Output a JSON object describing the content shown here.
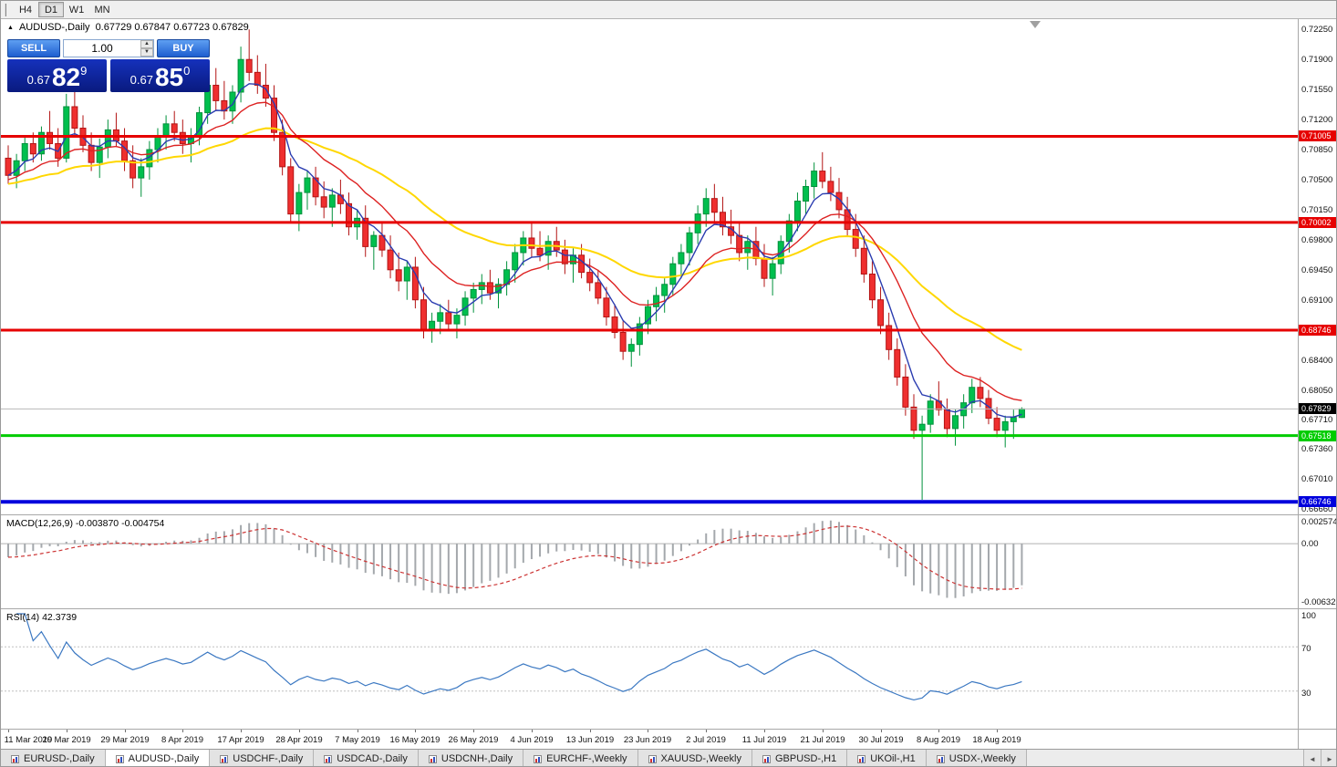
{
  "toolbar": {
    "timeframes": [
      "H4",
      "D1",
      "W1",
      "MN"
    ],
    "active": "D1"
  },
  "chart_header": {
    "marker": "▲",
    "symbol_label": "AUDUSD-,Daily",
    "ohlc": "0.67729 0.67847 0.67723 0.67829"
  },
  "trade_panel": {
    "sell_label": "SELL",
    "buy_label": "BUY",
    "volume": "1.00",
    "spin_up": "▲",
    "spin_down": "▼",
    "sell_price": {
      "small": "0.67",
      "big": "82",
      "sup": "9"
    },
    "buy_price": {
      "small": "0.67",
      "big": "85",
      "sup": "0"
    }
  },
  "macd_panel": {
    "label": "MACD(12,26,9) -0.003870 -0.004754"
  },
  "rsi_panel": {
    "label": "RSI(14) 42.3739"
  },
  "bid_tag": "0.67829",
  "colors": {
    "up": "#00bf4e",
    "up_dark": "#00913b",
    "down": "#ef2f2f",
    "down_dark": "#b31414",
    "ma_slow": "#ffd700",
    "ma_mid": "#dd2222",
    "ma_fast": "#2a3cb0",
    "macd_hist": "#a4a8ac",
    "macd_signal": "#cc3333",
    "rsi": "#3b78c2",
    "level_red": "#e60000",
    "level_green": "#00cc00",
    "level_blue": "#0000dd",
    "bid_line": "#b8b8b8",
    "trade_blue": "#0d22a8"
  },
  "bottom_tabs": {
    "tabs": [
      "EURUSD-,Daily",
      "AUDUSD-,Daily",
      "USDCHF-,Daily",
      "USDCAD-,Daily",
      "USDCNH-,Daily",
      "EURCHF-,Weekly",
      "XAUUSD-,Weekly",
      "GBPUSD-,H1",
      "UKOil-,H1",
      "USDX-,Weekly"
    ],
    "active_index": 1,
    "scroll_left": "◄",
    "scroll_right": "►"
  },
  "chart_data": {
    "type": "candlestick",
    "symbol": "AUDUSD-",
    "timeframe": "Daily",
    "title": "AUDUSD-,Daily",
    "price_range": [
      0.666,
      0.7237
    ],
    "bid": 0.67829,
    "ask": 0.6785,
    "y_ticks": [
      "0.72250",
      "0.71900",
      "0.71550",
      "0.71200",
      "0.70850",
      "0.70500",
      "0.70150",
      "0.69800",
      "0.69450",
      "0.69100",
      "0.68750",
      "0.68400",
      "0.68050",
      "0.67710",
      "0.67360",
      "0.67010",
      "0.66660"
    ],
    "macd_ticks": [
      "0.002574",
      "0.00",
      "-0.006326"
    ],
    "rsi_ticks": [
      "100",
      "70",
      "30"
    ],
    "date_labels": [
      "11 Mar 2019",
      "20 Mar 2019",
      "29 Mar 2019",
      "8 Apr 2019",
      "17 Apr 2019",
      "28 Apr 2019",
      "7 May 2019",
      "16 May 2019",
      "26 May 2019",
      "4 Jun 2019",
      "13 Jun 2019",
      "23 Jun 2019",
      "2 Jul 2019",
      "11 Jul 2019",
      "21 Jul 2019",
      "30 Jul 2019",
      "8 Aug 2019",
      "18 Aug 2019"
    ],
    "label_indices": [
      0,
      7,
      14,
      21,
      28,
      35,
      42,
      49,
      56,
      63,
      70,
      77,
      84,
      91,
      98,
      105,
      112,
      119
    ],
    "levels": [
      {
        "label": "0.71005",
        "price": 0.71005,
        "color": "#e60000",
        "width": 3
      },
      {
        "label": "0.70002",
        "price": 0.70002,
        "color": "#e60000",
        "width": 3
      },
      {
        "label": "0.68746",
        "price": 0.68746,
        "color": "#e60000",
        "width": 3
      },
      {
        "label": "0.67518",
        "price": 0.67518,
        "color": "#00cc00",
        "width": 3
      },
      {
        "label": "0.66746",
        "price": 0.66746,
        "color": "#0000dd",
        "width": 4
      }
    ],
    "ma_periods": [
      34,
      13,
      5
    ],
    "indicators": {
      "macd": {
        "params": "12,26,9",
        "value": -0.00387,
        "signal": -0.004754,
        "axis_max": 0.002574,
        "axis_min": -0.006326
      },
      "rsi": {
        "period": 14,
        "value": 42.3739,
        "levels": [
          70,
          30
        ]
      }
    },
    "ohlc": [
      [
        0.7075,
        0.709,
        0.7045,
        0.7055
      ],
      [
        0.7055,
        0.708,
        0.704,
        0.7072
      ],
      [
        0.7072,
        0.71,
        0.706,
        0.7092
      ],
      [
        0.7092,
        0.7105,
        0.707,
        0.708
      ],
      [
        0.708,
        0.7112,
        0.7072,
        0.7105
      ],
      [
        0.7105,
        0.713,
        0.7085,
        0.7092
      ],
      [
        0.7092,
        0.711,
        0.7065,
        0.7075
      ],
      [
        0.7075,
        0.715,
        0.707,
        0.7135
      ],
      [
        0.7135,
        0.7155,
        0.71,
        0.711
      ],
      [
        0.711,
        0.7125,
        0.7082,
        0.709
      ],
      [
        0.709,
        0.7105,
        0.706,
        0.707
      ],
      [
        0.707,
        0.7098,
        0.7052,
        0.7088
      ],
      [
        0.7088,
        0.712,
        0.7075,
        0.7108
      ],
      [
        0.7108,
        0.7128,
        0.7088,
        0.7095
      ],
      [
        0.7095,
        0.711,
        0.706,
        0.7072
      ],
      [
        0.7072,
        0.709,
        0.704,
        0.7052
      ],
      [
        0.7052,
        0.7075,
        0.703,
        0.7065
      ],
      [
        0.7065,
        0.7095,
        0.705,
        0.7085
      ],
      [
        0.7085,
        0.711,
        0.707,
        0.71
      ],
      [
        0.71,
        0.7125,
        0.7085,
        0.7115
      ],
      [
        0.7115,
        0.713,
        0.7095,
        0.7105
      ],
      [
        0.7105,
        0.712,
        0.708,
        0.7092
      ],
      [
        0.7092,
        0.711,
        0.707,
        0.71
      ],
      [
        0.71,
        0.7135,
        0.709,
        0.7128
      ],
      [
        0.7128,
        0.7175,
        0.7115,
        0.716
      ],
      [
        0.716,
        0.718,
        0.713,
        0.7142
      ],
      [
        0.7142,
        0.7165,
        0.712,
        0.713
      ],
      [
        0.713,
        0.716,
        0.7115,
        0.7152
      ],
      [
        0.7152,
        0.7205,
        0.714,
        0.719
      ],
      [
        0.719,
        0.7225,
        0.7165,
        0.7175
      ],
      [
        0.7175,
        0.7195,
        0.715,
        0.716
      ],
      [
        0.716,
        0.7185,
        0.7135,
        0.7145
      ],
      [
        0.7145,
        0.716,
        0.7095,
        0.7105
      ],
      [
        0.7105,
        0.712,
        0.7055,
        0.7065
      ],
      [
        0.7065,
        0.7075,
        0.7,
        0.701
      ],
      [
        0.701,
        0.7045,
        0.699,
        0.7035
      ],
      [
        0.7035,
        0.706,
        0.7015,
        0.7052
      ],
      [
        0.7052,
        0.7065,
        0.702,
        0.703
      ],
      [
        0.703,
        0.7048,
        0.7005,
        0.7018
      ],
      [
        0.7018,
        0.704,
        0.6995,
        0.7032
      ],
      [
        0.7032,
        0.705,
        0.701,
        0.7022
      ],
      [
        0.7022,
        0.7035,
        0.6985,
        0.6995
      ],
      [
        0.6995,
        0.7015,
        0.698,
        0.7005
      ],
      [
        0.7005,
        0.702,
        0.696,
        0.6972
      ],
      [
        0.6972,
        0.699,
        0.6945,
        0.6985
      ],
      [
        0.6985,
        0.7,
        0.696,
        0.6968
      ],
      [
        0.6968,
        0.6985,
        0.6935,
        0.6945
      ],
      [
        0.6945,
        0.6965,
        0.692,
        0.6932
      ],
      [
        0.6932,
        0.6955,
        0.691,
        0.6948
      ],
      [
        0.6948,
        0.696,
        0.69,
        0.691
      ],
      [
        0.691,
        0.6925,
        0.6865,
        0.6875
      ],
      [
        0.6875,
        0.6895,
        0.686,
        0.6885
      ],
      [
        0.6885,
        0.6905,
        0.687,
        0.6895
      ],
      [
        0.6895,
        0.691,
        0.6875,
        0.6882
      ],
      [
        0.6882,
        0.69,
        0.6865,
        0.6892
      ],
      [
        0.6892,
        0.692,
        0.688,
        0.6912
      ],
      [
        0.6912,
        0.693,
        0.6895,
        0.6922
      ],
      [
        0.6922,
        0.694,
        0.6905,
        0.693
      ],
      [
        0.693,
        0.6945,
        0.691,
        0.6918
      ],
      [
        0.6918,
        0.6935,
        0.69,
        0.6928
      ],
      [
        0.6928,
        0.6955,
        0.6915,
        0.6945
      ],
      [
        0.6945,
        0.6975,
        0.693,
        0.6965
      ],
      [
        0.6965,
        0.699,
        0.695,
        0.6982
      ],
      [
        0.6982,
        0.7,
        0.696,
        0.697
      ],
      [
        0.697,
        0.699,
        0.6955,
        0.6962
      ],
      [
        0.6962,
        0.6985,
        0.6945,
        0.6978
      ],
      [
        0.6978,
        0.6995,
        0.696,
        0.6968
      ],
      [
        0.6968,
        0.698,
        0.694,
        0.6952
      ],
      [
        0.6952,
        0.697,
        0.693,
        0.6962
      ],
      [
        0.6962,
        0.6975,
        0.6935,
        0.6942
      ],
      [
        0.6942,
        0.6958,
        0.692,
        0.693
      ],
      [
        0.693,
        0.6945,
        0.6905,
        0.6912
      ],
      [
        0.6912,
        0.6925,
        0.688,
        0.689
      ],
      [
        0.689,
        0.6905,
        0.6865,
        0.6872
      ],
      [
        0.6872,
        0.6885,
        0.684,
        0.685
      ],
      [
        0.685,
        0.6865,
        0.6832,
        0.6858
      ],
      [
        0.6858,
        0.689,
        0.6845,
        0.6882
      ],
      [
        0.6882,
        0.691,
        0.687,
        0.6902
      ],
      [
        0.6902,
        0.6925,
        0.6885,
        0.6915
      ],
      [
        0.6915,
        0.6935,
        0.6895,
        0.6928
      ],
      [
        0.6928,
        0.696,
        0.6915,
        0.6952
      ],
      [
        0.6952,
        0.6975,
        0.6935,
        0.6965
      ],
      [
        0.6965,
        0.6995,
        0.695,
        0.6988
      ],
      [
        0.6988,
        0.702,
        0.6975,
        0.701
      ],
      [
        0.701,
        0.704,
        0.6995,
        0.7028
      ],
      [
        0.7028,
        0.7045,
        0.7,
        0.7012
      ],
      [
        0.7012,
        0.703,
        0.6985,
        0.6995
      ],
      [
        0.6995,
        0.7015,
        0.6975,
        0.6985
      ],
      [
        0.6985,
        0.7,
        0.6955,
        0.6965
      ],
      [
        0.6965,
        0.6985,
        0.6945,
        0.6978
      ],
      [
        0.6978,
        0.6995,
        0.695,
        0.6958
      ],
      [
        0.6958,
        0.6975,
        0.6925,
        0.6935
      ],
      [
        0.6935,
        0.696,
        0.6915,
        0.6952
      ],
      [
        0.6952,
        0.6985,
        0.694,
        0.6978
      ],
      [
        0.6978,
        0.701,
        0.6965,
        0.7002
      ],
      [
        0.7002,
        0.7035,
        0.699,
        0.7025
      ],
      [
        0.7025,
        0.705,
        0.701,
        0.7042
      ],
      [
        0.7042,
        0.707,
        0.7028,
        0.706
      ],
      [
        0.706,
        0.7082,
        0.704,
        0.7048
      ],
      [
        0.7048,
        0.7065,
        0.7025,
        0.7035
      ],
      [
        0.7035,
        0.7052,
        0.7005,
        0.7015
      ],
      [
        0.7015,
        0.703,
        0.6985,
        0.6992
      ],
      [
        0.6992,
        0.701,
        0.696,
        0.697
      ],
      [
        0.697,
        0.6985,
        0.693,
        0.694
      ],
      [
        0.694,
        0.6955,
        0.69,
        0.691
      ],
      [
        0.691,
        0.6925,
        0.687,
        0.688
      ],
      [
        0.688,
        0.6895,
        0.684,
        0.6852
      ],
      [
        0.6852,
        0.6865,
        0.681,
        0.682
      ],
      [
        0.682,
        0.6835,
        0.6775,
        0.6785
      ],
      [
        0.6785,
        0.68,
        0.6748,
        0.6758
      ],
      [
        0.6758,
        0.6775,
        0.6677,
        0.6765
      ],
      [
        0.6765,
        0.68,
        0.6755,
        0.6792
      ],
      [
        0.6792,
        0.6815,
        0.6775,
        0.6782
      ],
      [
        0.6782,
        0.6795,
        0.675,
        0.676
      ],
      [
        0.676,
        0.6782,
        0.674,
        0.6775
      ],
      [
        0.6775,
        0.68,
        0.676,
        0.679
      ],
      [
        0.679,
        0.6818,
        0.6778,
        0.6808
      ],
      [
        0.6808,
        0.682,
        0.6785,
        0.6795
      ],
      [
        0.6795,
        0.6805,
        0.6765,
        0.6772
      ],
      [
        0.6772,
        0.6785,
        0.675,
        0.6758
      ],
      [
        0.6758,
        0.6775,
        0.6738,
        0.6768
      ],
      [
        0.6768,
        0.6782,
        0.6748,
        0.6773
      ],
      [
        0.67729,
        0.67847,
        0.67723,
        0.67829
      ]
    ]
  }
}
